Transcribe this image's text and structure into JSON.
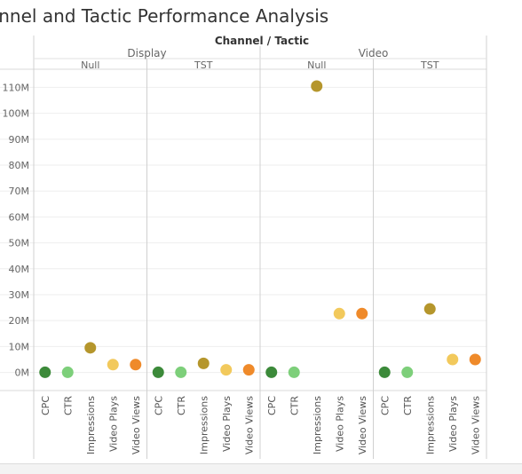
{
  "title": "annel and Tactic Performance Analysis",
  "chart_data": {
    "type": "scatter",
    "column_header": "Channel / Tactic",
    "measures": [
      "CPC",
      "CTR",
      "Impressions",
      "Video Plays",
      "Video Views"
    ],
    "measure_colors": {
      "CPC": "#3c8a3a",
      "CTR": "#7dcf7a",
      "Impressions": "#b5962c",
      "Video Plays": "#f2c95c",
      "Video Views": "#ef8a2a"
    },
    "panes": [
      {
        "channel": "Display",
        "tactic": "Null",
        "values": [
          0.05,
          0.05,
          9.5,
          3.0,
          3.0
        ]
      },
      {
        "channel": "Display",
        "tactic": "TST",
        "values": [
          0.05,
          0.05,
          3.5,
          1.0,
          1.0
        ]
      },
      {
        "channel": "Video",
        "tactic": "Null",
        "values": [
          0.05,
          0.05,
          110.5,
          22.7,
          22.7
        ]
      },
      {
        "channel": "Video",
        "tactic": "TST",
        "values": [
          0.05,
          0.05,
          24.5,
          5.0,
          5.0
        ]
      }
    ],
    "y_ticks": [
      "0M",
      "10M",
      "20M",
      "30M",
      "40M",
      "50M",
      "60M",
      "70M",
      "80M",
      "90M",
      "100M",
      "110M"
    ],
    "y_tick_values": [
      0,
      10,
      20,
      30,
      40,
      50,
      60,
      70,
      80,
      90,
      100,
      110
    ],
    "ylim": [
      -7,
      117
    ],
    "grid": true
  }
}
